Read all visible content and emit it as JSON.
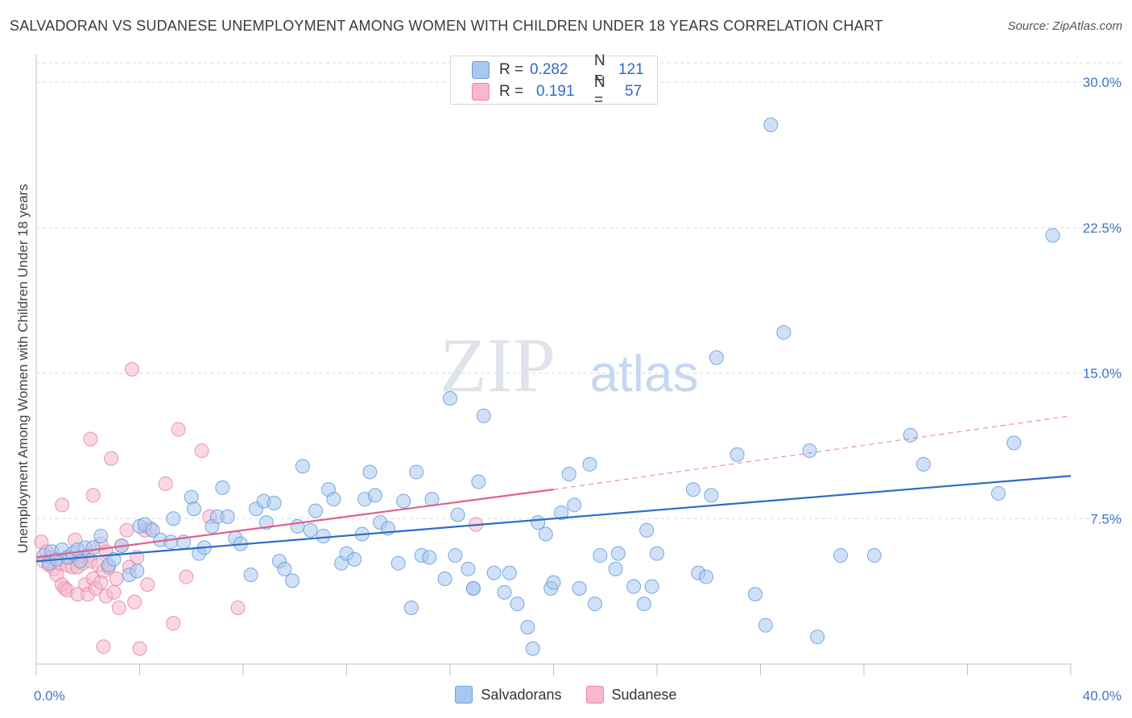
{
  "title": "SALVADORAN VS SUDANESE UNEMPLOYMENT AMONG WOMEN WITH CHILDREN UNDER 18 YEARS CORRELATION CHART",
  "source": "Source: ZipAtlas.com",
  "watermark": {
    "zip": "ZIP",
    "atlas": "atlas"
  },
  "legend_top": {
    "rows": [
      {
        "r_label": "R =",
        "r_value": "0.282",
        "n_label": "N =",
        "n_value": "121",
        "color": "#a9c8f0"
      },
      {
        "r_label": "R =",
        "r_value": "0.191",
        "n_label": "N =",
        "n_value": "57",
        "color": "#f5b8cc"
      }
    ]
  },
  "legend_bottom": [
    {
      "label": "Salvadorans",
      "color": "#a9c8f0"
    },
    {
      "label": "Sudanese",
      "color": "#f5b8cc"
    }
  ],
  "colors": {
    "blue_fill": "#a9c8f0",
    "blue_stroke": "#6a9fdc",
    "blue_line": "#2f6bc7",
    "pink_fill": "#f5b8cc",
    "pink_stroke": "#e78aa8",
    "pink_line": "#e0608c",
    "tick_text": "#3c76c8"
  },
  "chart_data": {
    "type": "scatter",
    "title": "SALVADORAN VS SUDANESE UNEMPLOYMENT AMONG WOMEN WITH CHILDREN UNDER 18 YEARS CORRELATION CHART",
    "xlabel": "",
    "ylabel": "Unemployment Among Women with Children Under 18 years",
    "xlim": [
      0,
      40
    ],
    "ylim": [
      0,
      31
    ],
    "x_ticks": [
      {
        "value": 0,
        "label": "0.0%"
      },
      {
        "value": 40,
        "label": "40.0%"
      }
    ],
    "y_ticks": [
      {
        "value": 7.5,
        "label": "7.5%"
      },
      {
        "value": 15,
        "label": "15.0%"
      },
      {
        "value": 22.5,
        "label": "22.5%"
      },
      {
        "value": 30,
        "label": "30.0%"
      }
    ],
    "grid": true,
    "series": [
      {
        "name": "Salvadorans",
        "points": [
          [
            0.3,
            5.6
          ],
          [
            0.5,
            5.2
          ],
          [
            0.6,
            5.8
          ],
          [
            0.8,
            5.4
          ],
          [
            1.0,
            5.9
          ],
          [
            1.2,
            5.5
          ],
          [
            1.4,
            5.7
          ],
          [
            1.6,
            5.9
          ],
          [
            1.7,
            5.3
          ],
          [
            1.9,
            6.0
          ],
          [
            2.2,
            6.0
          ],
          [
            2.5,
            6.6
          ],
          [
            2.8,
            5.1
          ],
          [
            3.0,
            5.4
          ],
          [
            3.3,
            6.1
          ],
          [
            3.6,
            4.6
          ],
          [
            3.9,
            4.8
          ],
          [
            4.0,
            7.1
          ],
          [
            4.2,
            7.2
          ],
          [
            4.5,
            6.9
          ],
          [
            4.8,
            6.4
          ],
          [
            5.2,
            6.3
          ],
          [
            5.3,
            7.5
          ],
          [
            5.7,
            6.3
          ],
          [
            6.0,
            8.6
          ],
          [
            6.1,
            8.0
          ],
          [
            6.3,
            5.7
          ],
          [
            6.5,
            6.0
          ],
          [
            6.8,
            7.1
          ],
          [
            7.0,
            7.6
          ],
          [
            7.2,
            9.1
          ],
          [
            7.4,
            7.6
          ],
          [
            7.7,
            6.5
          ],
          [
            7.9,
            6.2
          ],
          [
            8.3,
            4.6
          ],
          [
            8.5,
            8.0
          ],
          [
            8.8,
            8.4
          ],
          [
            8.9,
            7.3
          ],
          [
            9.2,
            8.3
          ],
          [
            9.4,
            5.3
          ],
          [
            9.6,
            4.9
          ],
          [
            9.9,
            4.3
          ],
          [
            10.1,
            7.1
          ],
          [
            10.3,
            10.2
          ],
          [
            10.6,
            6.9
          ],
          [
            10.8,
            7.9
          ],
          [
            11.1,
            6.6
          ],
          [
            11.3,
            9.0
          ],
          [
            11.5,
            8.5
          ],
          [
            11.8,
            5.2
          ],
          [
            12.0,
            5.7
          ],
          [
            12.3,
            5.4
          ],
          [
            12.6,
            6.7
          ],
          [
            12.7,
            8.5
          ],
          [
            12.9,
            9.9
          ],
          [
            13.1,
            8.7
          ],
          [
            13.3,
            7.3
          ],
          [
            13.6,
            7.0
          ],
          [
            14.0,
            5.2
          ],
          [
            14.2,
            8.4
          ],
          [
            14.5,
            2.9
          ],
          [
            14.7,
            9.9
          ],
          [
            14.9,
            5.6
          ],
          [
            15.2,
            5.5
          ],
          [
            15.3,
            8.5
          ],
          [
            15.8,
            4.4
          ],
          [
            16.0,
            13.7
          ],
          [
            16.2,
            5.6
          ],
          [
            16.3,
            7.7
          ],
          [
            16.7,
            4.9
          ],
          [
            16.9,
            3.9
          ],
          [
            16.9,
            3.9
          ],
          [
            17.1,
            9.4
          ],
          [
            17.3,
            12.8
          ],
          [
            17.7,
            4.7
          ],
          [
            18.1,
            3.7
          ],
          [
            18.3,
            4.7
          ],
          [
            18.6,
            3.1
          ],
          [
            19.0,
            1.9
          ],
          [
            19.2,
            0.8
          ],
          [
            19.4,
            7.3
          ],
          [
            19.7,
            6.7
          ],
          [
            19.9,
            3.9
          ],
          [
            20.0,
            4.2
          ],
          [
            20.3,
            7.8
          ],
          [
            20.6,
            9.8
          ],
          [
            20.8,
            8.2
          ],
          [
            21.0,
            3.9
          ],
          [
            21.4,
            10.3
          ],
          [
            21.6,
            3.1
          ],
          [
            21.8,
            5.6
          ],
          [
            22.4,
            4.9
          ],
          [
            22.5,
            5.7
          ],
          [
            23.1,
            4.0
          ],
          [
            23.5,
            3.1
          ],
          [
            23.6,
            6.9
          ],
          [
            23.8,
            4.0
          ],
          [
            24.0,
            5.7
          ],
          [
            25.4,
            9.0
          ],
          [
            25.6,
            4.7
          ],
          [
            25.9,
            4.5
          ],
          [
            26.1,
            8.7
          ],
          [
            26.3,
            15.8
          ],
          [
            27.1,
            10.8
          ],
          [
            27.8,
            3.6
          ],
          [
            28.2,
            2.0
          ],
          [
            28.4,
            27.8
          ],
          [
            28.9,
            17.1
          ],
          [
            29.9,
            11.0
          ],
          [
            30.2,
            1.4
          ],
          [
            31.1,
            5.6
          ],
          [
            32.4,
            5.6
          ],
          [
            33.8,
            11.8
          ],
          [
            34.3,
            10.3
          ],
          [
            37.2,
            8.8
          ],
          [
            37.8,
            11.4
          ],
          [
            39.3,
            22.1
          ]
        ],
        "trend": {
          "x1": 0,
          "y1": 5.3,
          "x2": 40,
          "y2": 9.7
        }
      },
      {
        "name": "Sudanese",
        "points": [
          [
            0.2,
            6.3
          ],
          [
            0.3,
            5.3
          ],
          [
            0.4,
            5.8
          ],
          [
            0.5,
            5.1
          ],
          [
            0.6,
            5.5
          ],
          [
            0.7,
            4.9
          ],
          [
            0.8,
            4.6
          ],
          [
            0.9,
            5.2
          ],
          [
            1.0,
            4.1
          ],
          [
            1.0,
            8.2
          ],
          [
            1.1,
            3.9
          ],
          [
            1.2,
            5.1
          ],
          [
            1.2,
            3.8
          ],
          [
            1.3,
            5.5
          ],
          [
            1.4,
            5.0
          ],
          [
            1.5,
            6.4
          ],
          [
            1.6,
            5.0
          ],
          [
            1.6,
            3.6
          ],
          [
            1.8,
            5.2
          ],
          [
            1.9,
            4.1
          ],
          [
            2.0,
            3.6
          ],
          [
            2.0,
            5.6
          ],
          [
            2.1,
            5.3
          ],
          [
            2.1,
            11.6
          ],
          [
            2.2,
            4.4
          ],
          [
            2.2,
            8.7
          ],
          [
            2.3,
            3.9
          ],
          [
            2.4,
            5.1
          ],
          [
            2.5,
            6.2
          ],
          [
            2.5,
            4.2
          ],
          [
            2.6,
            4.8
          ],
          [
            2.6,
            0.9
          ],
          [
            2.7,
            3.5
          ],
          [
            2.8,
            5.0
          ],
          [
            2.9,
            10.6
          ],
          [
            3.0,
            3.7
          ],
          [
            3.1,
            4.4
          ],
          [
            3.2,
            2.9
          ],
          [
            3.3,
            6.1
          ],
          [
            3.5,
            6.9
          ],
          [
            3.6,
            5.0
          ],
          [
            3.7,
            15.2
          ],
          [
            3.8,
            3.2
          ],
          [
            4.0,
            0.8
          ],
          [
            4.2,
            6.9
          ],
          [
            4.3,
            4.1
          ],
          [
            4.4,
            7.0
          ],
          [
            5.0,
            9.3
          ],
          [
            5.3,
            2.1
          ],
          [
            5.5,
            12.1
          ],
          [
            5.8,
            4.5
          ],
          [
            6.4,
            11.0
          ],
          [
            6.7,
            7.6
          ],
          [
            7.8,
            2.9
          ],
          [
            17.0,
            7.2
          ],
          [
            3.9,
            5.5
          ],
          [
            2.7,
            5.8
          ]
        ],
        "trend": {
          "x1": 0,
          "y1": 5.5,
          "x2": 20,
          "y2": 9.0
        },
        "trend_extension": {
          "x1": 20,
          "y1": 9.0,
          "x2": 40,
          "y2": 12.8
        }
      }
    ]
  }
}
